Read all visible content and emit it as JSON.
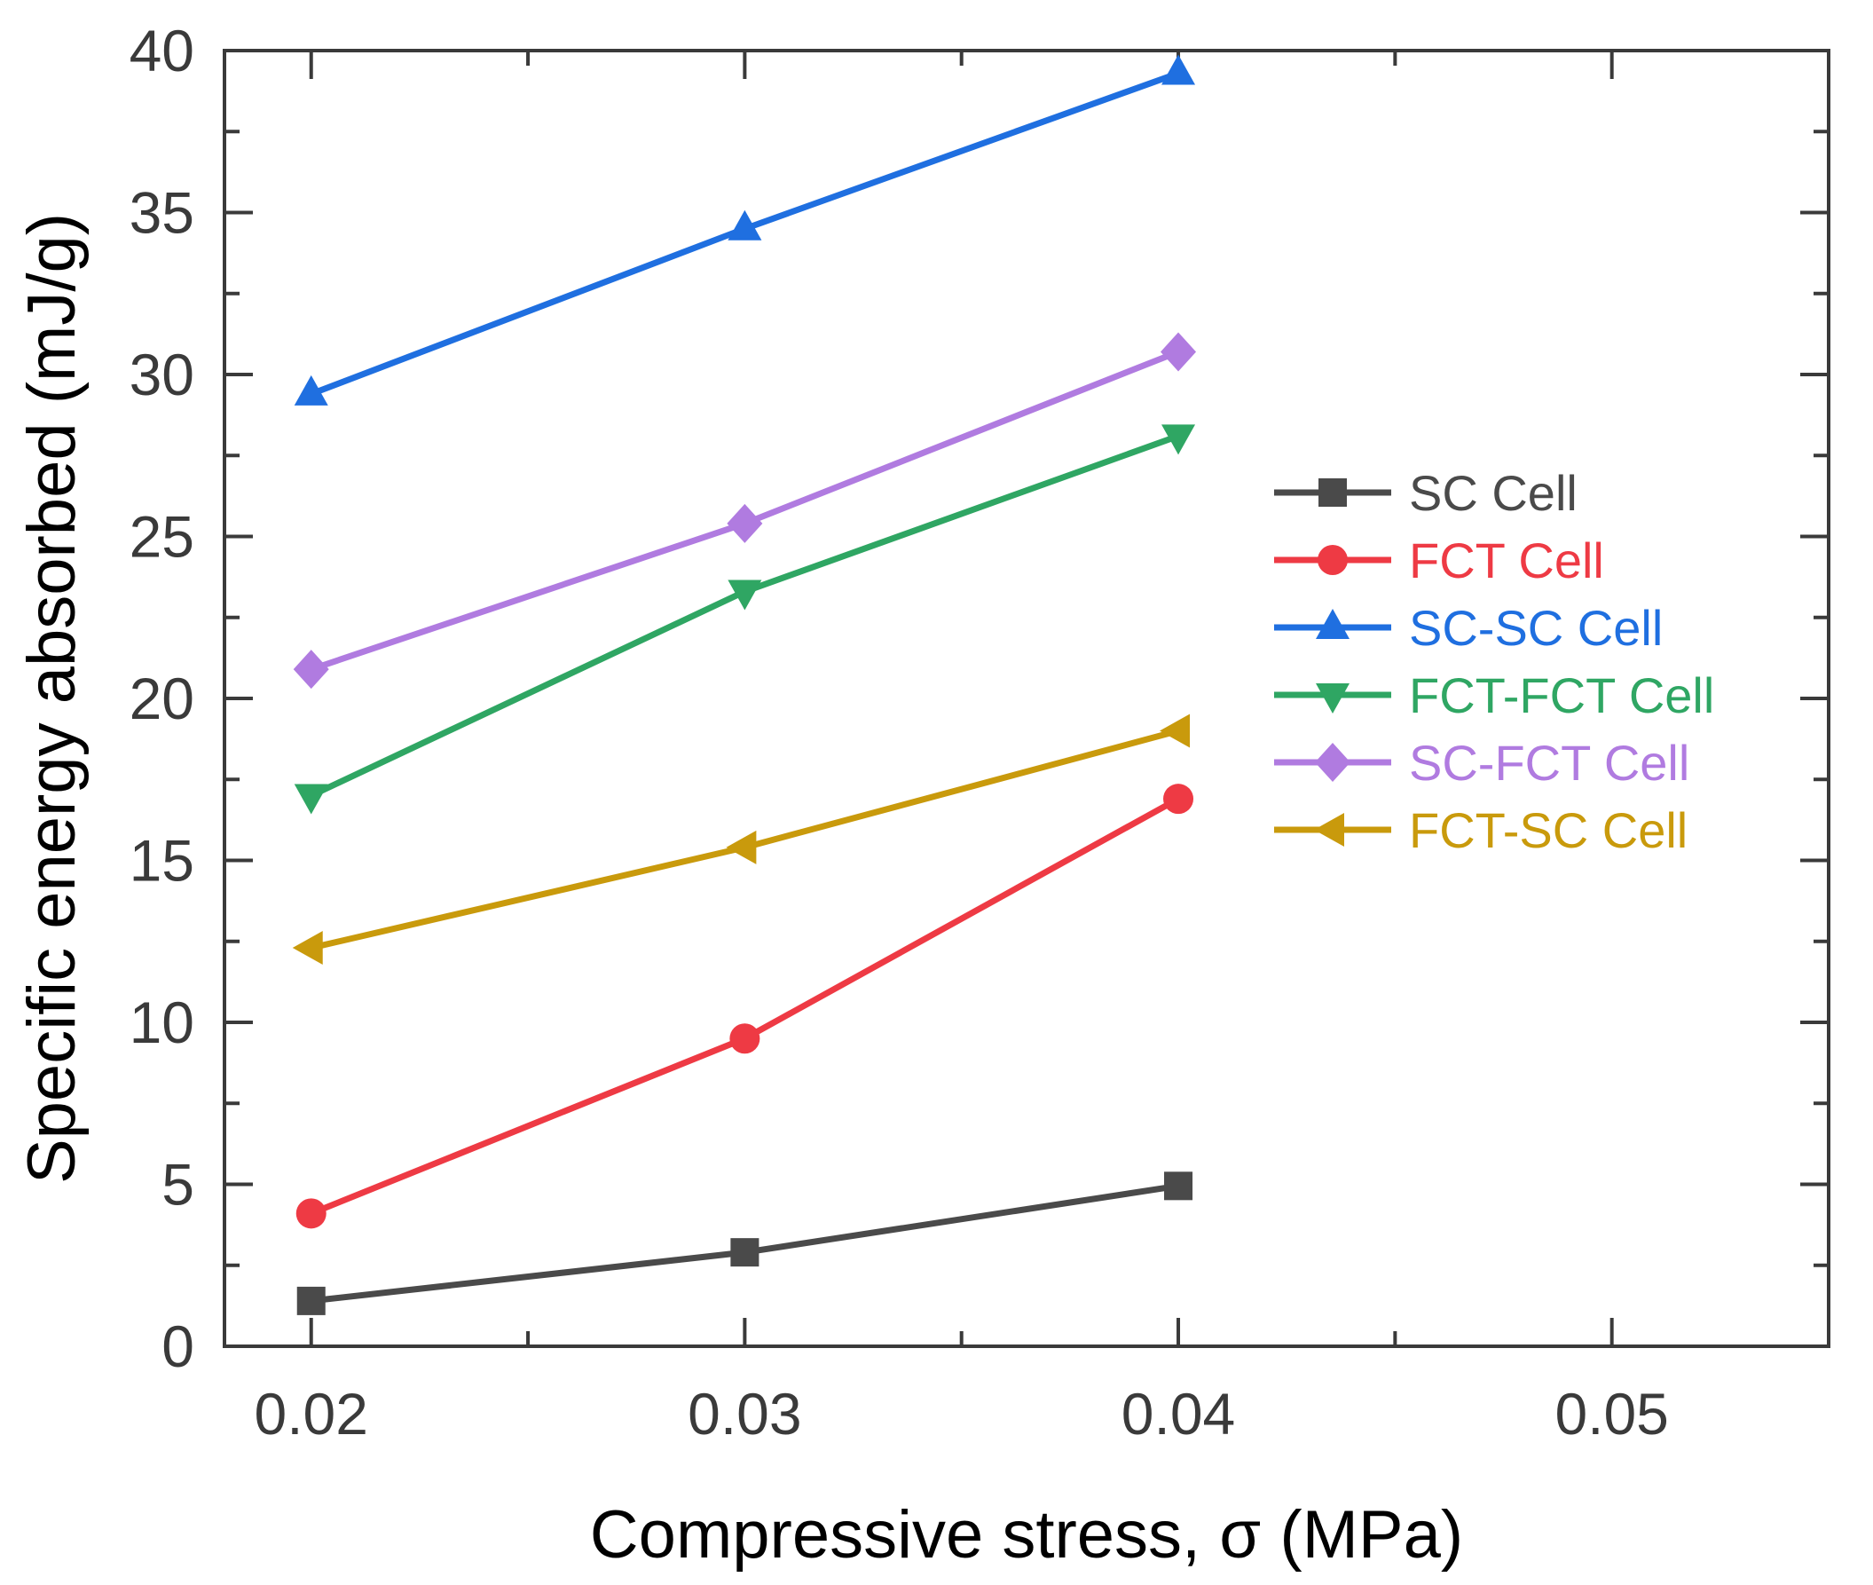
{
  "chart_data": {
    "type": "line",
    "title": "",
    "xlabel": "Compressive stress, σ (MPa)",
    "ylabel": "Specific energy absorbed (mJ/g)",
    "xlim": [
      0.018,
      0.055
    ],
    "ylim": [
      0,
      40
    ],
    "x": [
      0.02,
      0.03,
      0.04
    ],
    "x_ticks": [
      0.02,
      0.03,
      0.04,
      0.05
    ],
    "x_tick_labels": [
      "0.02",
      "0.03",
      "0.04",
      "0.05"
    ],
    "y_ticks": [
      0,
      5,
      10,
      15,
      20,
      25,
      30,
      35,
      40
    ],
    "y_tick_labels": [
      "0",
      "5",
      "10",
      "15",
      "20",
      "25",
      "30",
      "35",
      "40"
    ],
    "grid": false,
    "legend_position": "center-right",
    "series": [
      {
        "name": "SC Cell",
        "values": [
          1.4,
          2.9,
          4.95
        ],
        "color": "#4a4a4a",
        "marker": "square"
      },
      {
        "name": "FCT Cell",
        "values": [
          4.1,
          9.5,
          16.9
        ],
        "color": "#ee3a44",
        "marker": "circle"
      },
      {
        "name": "SC-SC Cell",
        "values": [
          29.4,
          34.5,
          39.3
        ],
        "color": "#1f6fe0",
        "marker": "triangle-up"
      },
      {
        "name": "FCT-FCT Cell",
        "values": [
          17.0,
          23.3,
          28.1
        ],
        "color": "#2fa663",
        "marker": "triangle-down"
      },
      {
        "name": "SC-FCT Cell",
        "values": [
          20.9,
          25.4,
          30.7
        ],
        "color": "#b07be0",
        "marker": "diamond"
      },
      {
        "name": "FCT-SC Cell",
        "values": [
          12.3,
          15.4,
          19.0
        ],
        "color": "#c99a0c",
        "marker": "triangle-left"
      }
    ]
  }
}
